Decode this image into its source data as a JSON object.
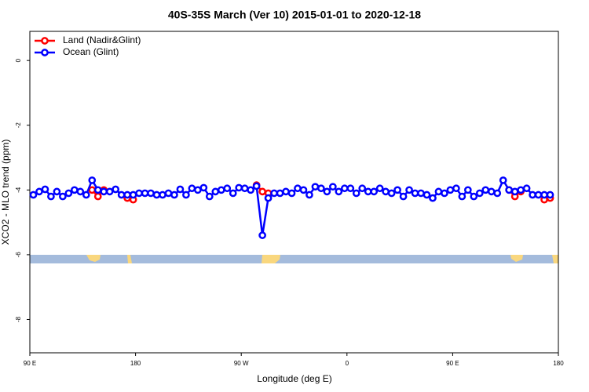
{
  "chart_data": {
    "type": "line",
    "title": "40S-35S March (Ver 10)   2015-01-01 to 2020-12-18",
    "x_label": "Longitude (deg E)",
    "y_label": "XCO2 - MLO trend (ppm)",
    "xlim": [
      90,
      540
    ],
    "ylim": [
      -9.03,
      0.9
    ],
    "xticks": [
      {
        "value": 90,
        "label": "90 E"
      },
      {
        "value": 180,
        "label": "180"
      },
      {
        "value": 270,
        "label": "90 W"
      },
      {
        "value": 360,
        "label": "0"
      },
      {
        "value": 450,
        "label": "90 E"
      },
      {
        "value": 540,
        "label": "180"
      }
    ],
    "yticks": [
      -8,
      -6,
      -4,
      -2,
      0
    ],
    "legend": "top-left",
    "series": [
      {
        "name": "Land (Nadir&Glint)",
        "color": "#ff0000",
        "x": [
          143,
          148,
          153,
          null,
          173,
          178,
          null,
          283,
          288,
          293,
          null,
          498,
          503,
          508,
          null,
          528,
          533
        ],
        "values": [
          -4.0,
          -4.2,
          -4.0,
          null,
          -4.25,
          -4.3,
          null,
          -3.85,
          -4.05,
          -4.1,
          null,
          -4.0,
          -4.2,
          -4.05,
          null,
          -4.3,
          -4.25
        ]
      },
      {
        "name": "Ocean (Glint)",
        "color": "#0000ff",
        "x": [
          93,
          98,
          103,
          108,
          113,
          118,
          123,
          128,
          133,
          138,
          143,
          148,
          153,
          158,
          163,
          168,
          173,
          178,
          183,
          188,
          193,
          198,
          203,
          208,
          213,
          218,
          223,
          228,
          233,
          238,
          243,
          248,
          253,
          258,
          263,
          268,
          273,
          278,
          283,
          288,
          293,
          298,
          303,
          308,
          313,
          318,
          323,
          328,
          333,
          338,
          343,
          348,
          353,
          358,
          363,
          368,
          373,
          378,
          383,
          388,
          393,
          398,
          403,
          408,
          413,
          418,
          423,
          428,
          433,
          438,
          443,
          448,
          453,
          458,
          463,
          468,
          473,
          478,
          483,
          488,
          493,
          498,
          503,
          508,
          513,
          518,
          523,
          528,
          533
        ],
        "values": [
          -4.15,
          -4.05,
          -3.98,
          -4.2,
          -4.05,
          -4.2,
          -4.1,
          -4.0,
          -4.05,
          -4.15,
          -3.7,
          -4.0,
          -4.05,
          -4.05,
          -3.98,
          -4.15,
          -4.15,
          -4.15,
          -4.1,
          -4.1,
          -4.1,
          -4.15,
          -4.15,
          -4.1,
          -4.15,
          -3.98,
          -4.15,
          -3.95,
          -4.0,
          -3.93,
          -4.2,
          -4.05,
          -4.0,
          -3.95,
          -4.1,
          -3.93,
          -3.95,
          -4.0,
          -3.88,
          -5.4,
          -4.25,
          -4.1,
          -4.1,
          -4.05,
          -4.1,
          -3.95,
          -4.0,
          -4.15,
          -3.9,
          -3.95,
          -4.05,
          -3.9,
          -4.05,
          -3.95,
          -3.95,
          -4.1,
          -3.95,
          -4.05,
          -4.05,
          -3.95,
          -4.05,
          -4.1,
          -4.0,
          -4.2,
          -4.0,
          -4.1,
          -4.1,
          -4.15,
          -4.25,
          -4.05,
          -4.1,
          -4.0,
          -3.95,
          -4.2,
          -4.0,
          -4.2,
          -4.1,
          -4.0,
          -4.05,
          -4.1,
          -3.7,
          -4.0,
          -4.05,
          -4.0,
          -3.95,
          -4.15,
          -4.15,
          -4.15,
          -4.15
        ]
      }
    ]
  }
}
